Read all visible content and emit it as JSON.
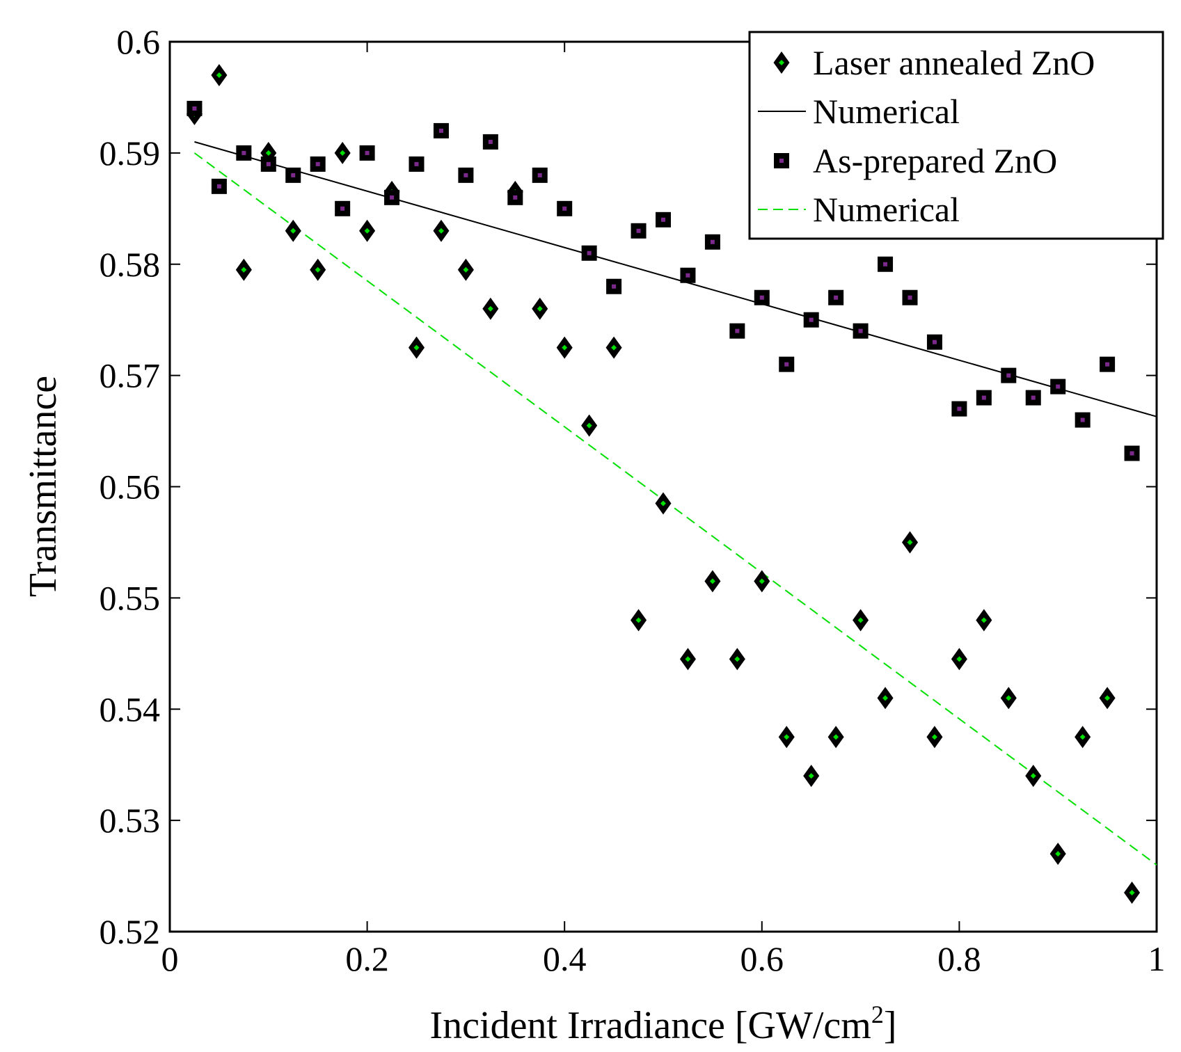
{
  "chart_data": {
    "type": "scatter",
    "title": "",
    "xlabel": "Incident Irradiance [GW/cm",
    "xlabel_superscript": "2",
    "xlabel_suffix": "]",
    "ylabel": "Transmittance",
    "xlim": [
      0,
      1
    ],
    "ylim": [
      0.52,
      0.6
    ],
    "x_ticks": [
      0,
      0.2,
      0.4,
      0.6,
      0.8,
      1
    ],
    "x_tick_labels": [
      "0",
      "0.2",
      "0.4",
      "0.6",
      "0.8",
      "1"
    ],
    "y_ticks": [
      0.52,
      0.53,
      0.54,
      0.55,
      0.56,
      0.57,
      0.58,
      0.59,
      0.6
    ],
    "y_tick_labels": [
      "0.52",
      "0.53",
      "0.54",
      "0.55",
      "0.56",
      "0.57",
      "0.58",
      "0.59",
      "0.6"
    ],
    "grid": false,
    "legend_position": "top-right",
    "series": [
      {
        "name": "Laser annealed ZnO",
        "kind": "markers",
        "marker": "diamond",
        "color": "#00e000",
        "edge_color": "#000000",
        "x": [
          0.025,
          0.05,
          0.075,
          0.1,
          0.125,
          0.15,
          0.175,
          0.2,
          0.225,
          0.25,
          0.275,
          0.3,
          0.325,
          0.35,
          0.375,
          0.4,
          0.425,
          0.45,
          0.475,
          0.5,
          0.525,
          0.55,
          0.575,
          0.6,
          0.625,
          0.65,
          0.675,
          0.7,
          0.725,
          0.75,
          0.775,
          0.8,
          0.825,
          0.85,
          0.875,
          0.9,
          0.925,
          0.95,
          0.975
        ],
        "y": [
          0.5935,
          0.597,
          0.5795,
          0.59,
          0.583,
          0.5795,
          0.59,
          0.583,
          0.5865,
          0.5725,
          0.583,
          0.5795,
          0.576,
          0.5865,
          0.576,
          0.5725,
          0.5655,
          0.5725,
          0.548,
          0.5585,
          0.5445,
          0.5515,
          0.5445,
          0.5515,
          0.5375,
          0.534,
          0.5375,
          0.548,
          0.541,
          0.555,
          0.5375,
          0.5445,
          0.548,
          0.541,
          0.534,
          0.527,
          0.5375,
          0.541,
          0.5235
        ]
      },
      {
        "name": "Numerical",
        "kind": "line",
        "style": "solid",
        "color": "#000000",
        "x": [
          0.025,
          1
        ],
        "y": [
          0.591,
          0.5663
        ]
      },
      {
        "name": "As-prepared ZnO",
        "kind": "markers",
        "marker": "square",
        "color": "#7b2a8c",
        "edge_color": "#000000",
        "x": [
          0.025,
          0.05,
          0.075,
          0.1,
          0.125,
          0.15,
          0.175,
          0.2,
          0.225,
          0.25,
          0.275,
          0.3,
          0.325,
          0.35,
          0.375,
          0.4,
          0.425,
          0.45,
          0.475,
          0.5,
          0.525,
          0.55,
          0.575,
          0.6,
          0.625,
          0.65,
          0.675,
          0.7,
          0.725,
          0.75,
          0.775,
          0.8,
          0.825,
          0.85,
          0.875,
          0.9,
          0.925,
          0.95,
          0.975
        ],
        "y": [
          0.594,
          0.587,
          0.59,
          0.589,
          0.588,
          0.589,
          0.585,
          0.59,
          0.586,
          0.589,
          0.592,
          0.588,
          0.591,
          0.586,
          0.588,
          0.585,
          0.581,
          0.578,
          0.583,
          0.584,
          0.579,
          0.582,
          0.574,
          0.577,
          0.571,
          0.575,
          0.577,
          0.574,
          0.58,
          0.577,
          0.573,
          0.567,
          0.568,
          0.57,
          0.568,
          0.569,
          0.566,
          0.571,
          0.563
        ]
      },
      {
        "name": "Numerical",
        "kind": "line",
        "style": "dashed",
        "color": "#00e000",
        "x": [
          0.025,
          1
        ],
        "y": [
          0.59,
          0.526
        ]
      }
    ]
  }
}
